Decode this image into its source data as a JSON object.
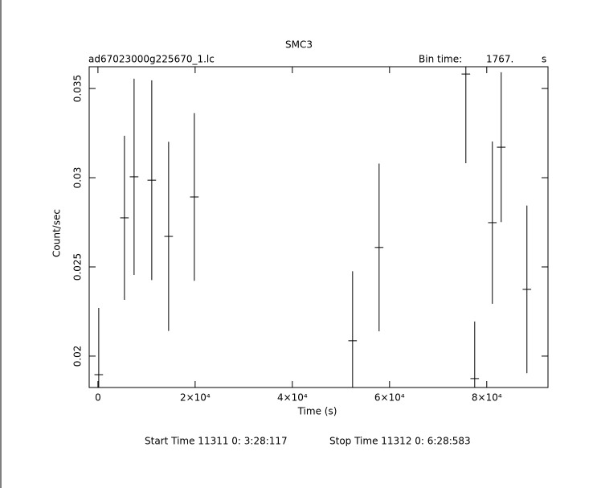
{
  "chart_data": {
    "type": "errorbar",
    "title": "SMC3",
    "file_name": "ad67023000g225670_1.lc",
    "bin_time_label": "Bin time:",
    "bin_time_value": "1767.",
    "bin_time_unit": "s",
    "x_label": "Time (s)",
    "y_label": "Count/sec",
    "start_time": "Start Time 11311  0: 3:28:117",
    "stop_time": "Stop Time 11312  0: 6:28:583",
    "xlim": [
      -1800,
      92600
    ],
    "ylim": [
      0.01824,
      0.03622
    ],
    "xticks": [
      0,
      {
        "value": 20000,
        "label": "2×10⁴"
      },
      {
        "value": 40000,
        "label": "4×10⁴"
      },
      {
        "value": 60000,
        "label": "6×10⁴"
      },
      {
        "value": 80000,
        "label": "8×10⁴"
      }
    ],
    "yticks": [
      0.02,
      0.025,
      0.03,
      0.035
    ],
    "color": "#000000",
    "x": [
      165,
      5455,
      7438,
      11074,
      14545,
      19835,
      52397,
      57851,
      75702,
      77521,
      81157,
      82975,
      88264
    ],
    "values": [
      0.01896,
      0.02775,
      0.03005,
      0.02986,
      0.02671,
      0.02892,
      0.02086,
      0.02609,
      0.03581,
      0.01874,
      0.02748,
      0.03171,
      0.02374
    ],
    "errors": [
      0.00374,
      0.0046,
      0.0055,
      0.0056,
      0.0053,
      0.0047,
      0.0039,
      0.0047,
      0.005,
      0.0032,
      0.00455,
      0.0042,
      0.0047
    ]
  }
}
